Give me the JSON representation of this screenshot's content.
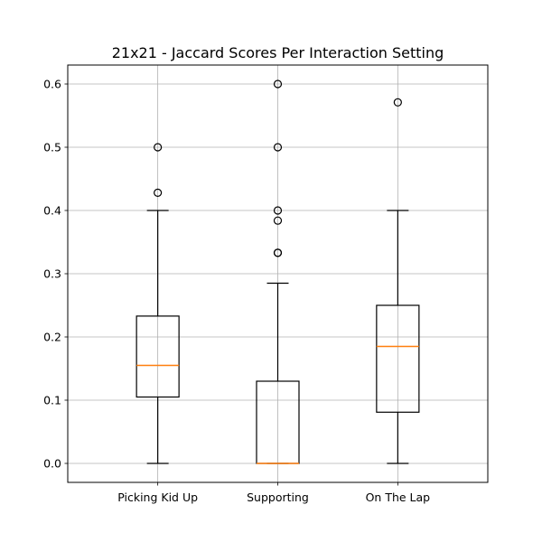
{
  "chart_data": {
    "type": "box",
    "title": "21x21 - Jaccard Scores Per Interaction Setting",
    "xlabel": "",
    "ylabel": "",
    "ylim": [
      -0.03,
      0.63
    ],
    "yticks": [
      0.0,
      0.1,
      0.2,
      0.3,
      0.4,
      0.5,
      0.6
    ],
    "ytick_labels": [
      "0.0",
      "0.1",
      "0.2",
      "0.3",
      "0.4",
      "0.5",
      "0.6"
    ],
    "grid": true,
    "categories": [
      "Picking Kid Up",
      "Supporting",
      "On The Lap"
    ],
    "boxes": [
      {
        "whisker_low": 0.0,
        "q1": 0.105,
        "median": 0.155,
        "q3": 0.233,
        "whisker_high": 0.4,
        "outliers": [
          0.5,
          0.428
        ]
      },
      {
        "whisker_low": 0.0,
        "q1": 0.0,
        "median": 0.0,
        "q3": 0.13,
        "whisker_high": 0.285,
        "outliers": [
          0.6,
          0.5,
          0.4,
          0.384,
          0.333,
          0.333
        ]
      },
      {
        "whisker_low": 0.0,
        "q1": 0.081,
        "median": 0.185,
        "q3": 0.25,
        "whisker_high": 0.4,
        "outliers": [
          0.571
        ]
      }
    ],
    "colors": {
      "box": "#000000",
      "median": "#ff7f0e",
      "grid": "#b0b0b0"
    }
  }
}
